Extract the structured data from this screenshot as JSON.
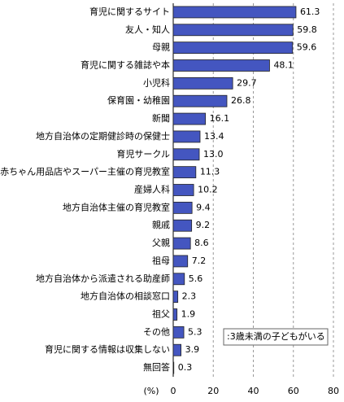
{
  "chart_data": {
    "type": "hbar",
    "categories": [
      "育児に関するサイト",
      "友人・知人",
      "母親",
      "育児に関する雑誌や本",
      "小児科",
      "保育園・幼稚園",
      "新聞",
      "地方自治体の定期健診時の保健士",
      "育児サークル",
      "赤ちゃん用品店やスーパー主催の育児教室",
      "産婦人科",
      "地方自治体主催の育児教室",
      "親戚",
      "父親",
      "祖母",
      "地方自治体から派遣される助産師",
      "地方自治体の相談窓口",
      "祖父",
      "その他",
      "育児に関する情報は収集しない",
      "無回答"
    ],
    "series": [
      {
        "name": ":3歳未満の子どもがいる",
        "color": "#4456c0",
        "values": [
          61.3,
          59.8,
          59.6,
          48.1,
          29.7,
          26.8,
          16.1,
          13.4,
          13.0,
          11.3,
          10.2,
          9.4,
          9.2,
          8.6,
          7.2,
          5.6,
          2.3,
          1.9,
          5.3,
          3.9,
          0.3
        ],
        "value_labels": [
          "61.3",
          "59.8",
          "59.6",
          "48.1",
          "29.7",
          "26.8",
          "16.1",
          "13.4",
          "13.0",
          "11.3",
          "10.2",
          "9.4",
          "9.2",
          "8.6",
          "7.2",
          "5.6",
          "2.3",
          "1.9",
          "5.3",
          "3.9",
          "0.3"
        ]
      }
    ],
    "xlabel": "(%)",
    "xlim": [
      0,
      80
    ],
    "xticks": [
      0,
      20,
      40,
      60,
      80
    ],
    "grid": true
  }
}
